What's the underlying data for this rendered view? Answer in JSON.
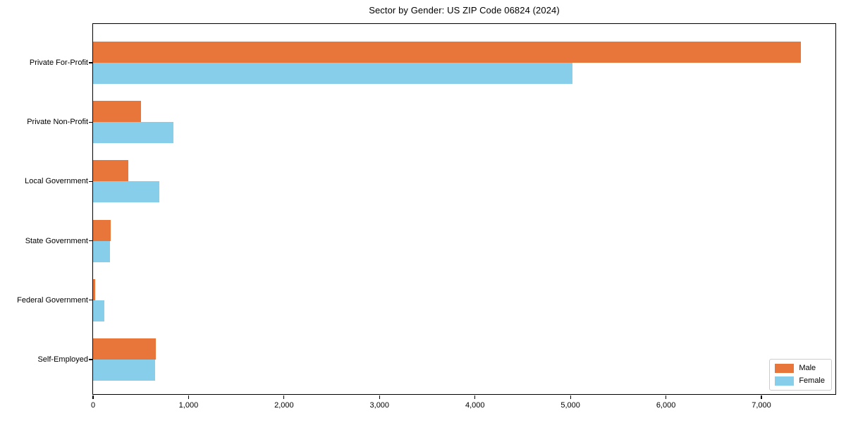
{
  "chart_data": {
    "type": "bar",
    "orientation": "horizontal",
    "title": "Sector by Gender: US ZIP Code 06824 (2024)",
    "categories": [
      "Private For-Profit",
      "Private Non-Profit",
      "Local Government",
      "State Government",
      "Federal Government",
      "Self-Employed"
    ],
    "series": [
      {
        "name": "Male",
        "color": "#e8763b",
        "values": [
          7414,
          503,
          370,
          185,
          22,
          658
        ]
      },
      {
        "name": "Female",
        "color": "#87ceeb",
        "values": [
          5019,
          843,
          695,
          180,
          118,
          650
        ]
      }
    ],
    "xlabel": "",
    "ylabel": "",
    "xlim": [
      0,
      7790
    ],
    "xticks": [
      {
        "value": 0,
        "label": "0"
      },
      {
        "value": 1000,
        "label": "1,000"
      },
      {
        "value": 2000,
        "label": "2,000"
      },
      {
        "value": 3000,
        "label": "3,000"
      },
      {
        "value": 4000,
        "label": "4,000"
      },
      {
        "value": 5000,
        "label": "5,000"
      },
      {
        "value": 6000,
        "label": "6,000"
      },
      {
        "value": 7000,
        "label": "7,000"
      }
    ],
    "grid": false,
    "legend": {
      "position": "lower right"
    }
  }
}
